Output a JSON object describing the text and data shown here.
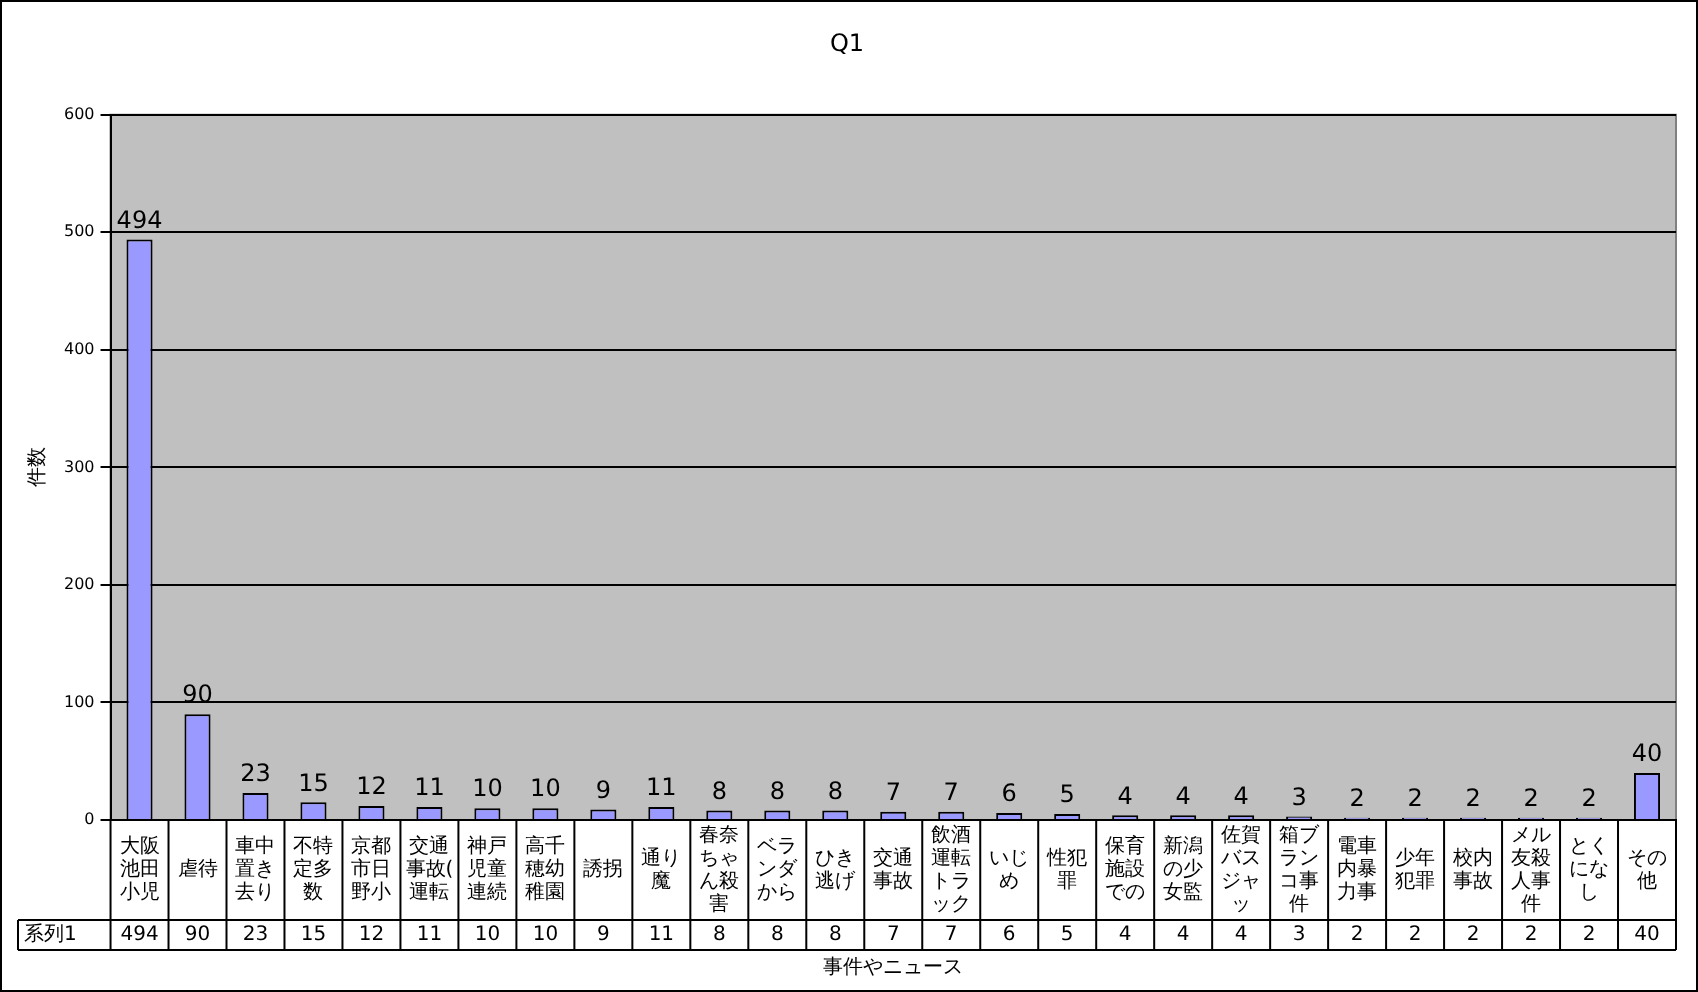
{
  "chart_data": {
    "type": "bar",
    "title": "Q1",
    "xlabel": "事件やニュース",
    "ylabel": "件数",
    "categories": [
      "大阪池田小児",
      "虐待",
      "車中置き去り",
      "不特定多数",
      "京都市日野小",
      "交通事故(運転",
      "神戸児童連続",
      "高千穂幼稚園",
      "誘拐",
      "通り魔",
      "春奈ちゃん殺害",
      "ベランダから",
      "ひき逃げ",
      "交通事故",
      "飲酒運転トラック",
      "いじめ",
      "性犯罪",
      "保育施設での",
      "新潟の少女監",
      "佐賀バスジャッ",
      "箱ブランコ事件",
      "電車内暴力事",
      "少年犯罪",
      "校内事故",
      "メル友殺人事件",
      "とくになし",
      "その他"
    ],
    "series": [
      {
        "name": "系列1",
        "color": "#9999ff",
        "values": [
          494,
          90,
          23,
          15,
          12,
          11,
          10,
          10,
          9,
          11,
          8,
          8,
          8,
          7,
          7,
          6,
          5,
          4,
          4,
          4,
          3,
          2,
          2,
          2,
          2,
          2,
          40
        ]
      }
    ],
    "annotations": [
      "494",
      "90",
      "23",
      "15",
      "12",
      "11",
      "10",
      "10",
      "9",
      "11",
      "8",
      "8",
      "8",
      "7",
      "7",
      "6",
      "5",
      "4",
      "4",
      "4",
      "3",
      "2",
      "2",
      "2",
      "2",
      "2",
      "40"
    ],
    "ylim": [
      0,
      600
    ],
    "yticks": [
      0,
      100,
      200,
      300,
      400,
      500,
      600
    ],
    "grid": "y",
    "data_labels": true,
    "legend": false
  }
}
